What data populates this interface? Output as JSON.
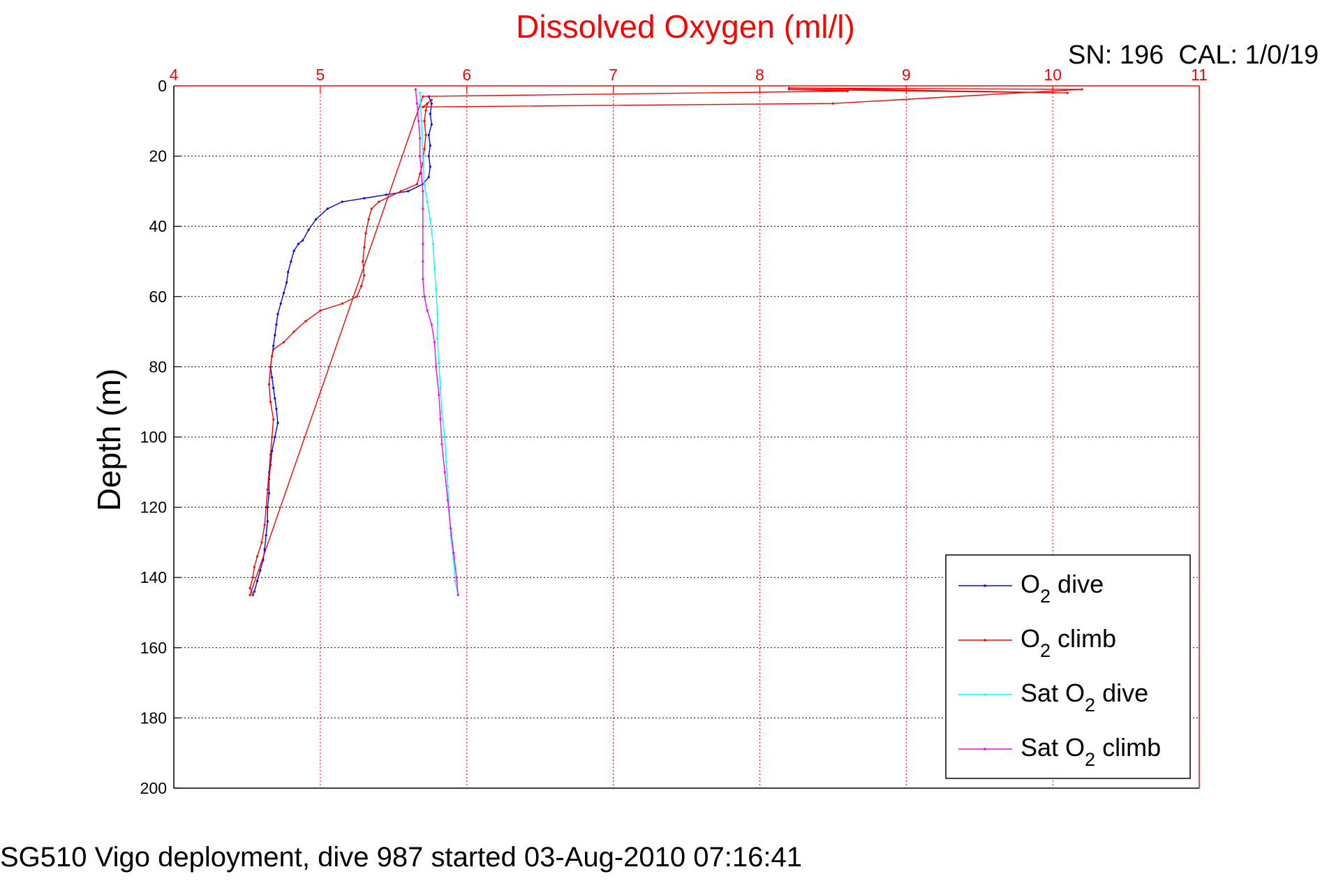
{
  "chart_data": {
    "type": "line",
    "title": "Dissolved Oxygen (ml/l)",
    "ylabel": "Depth (m)",
    "xlabel": "",
    "xlim": [
      4,
      11
    ],
    "ylim": [
      0,
      200
    ],
    "y_reversed": true,
    "x_axis_position": "top",
    "grid": true,
    "legend_position": "bottom-right",
    "xticks": [
      "4",
      "5",
      "6",
      "7",
      "8",
      "9",
      "10",
      "11"
    ],
    "yticks": [
      "0",
      "20",
      "40",
      "60",
      "80",
      "100",
      "120",
      "140",
      "160",
      "180",
      "200"
    ],
    "series": [
      {
        "name": "O₂ dive",
        "legend_main": "O",
        "legend_sub": "2",
        "legend_tail": " dive",
        "color": "#0000ff",
        "points": [
          [
            5.74,
            3
          ],
          [
            5.76,
            5
          ],
          [
            5.75,
            8
          ],
          [
            5.76,
            11
          ],
          [
            5.74,
            14
          ],
          [
            5.75,
            17
          ],
          [
            5.74,
            20
          ],
          [
            5.75,
            23
          ],
          [
            5.74,
            26
          ],
          [
            5.7,
            28
          ],
          [
            5.6,
            30
          ],
          [
            5.45,
            31
          ],
          [
            5.3,
            32
          ],
          [
            5.15,
            33
          ],
          [
            5.05,
            35
          ],
          [
            4.97,
            38
          ],
          [
            4.92,
            41
          ],
          [
            4.88,
            44
          ],
          [
            4.85,
            45
          ],
          [
            4.82,
            47
          ],
          [
            4.8,
            50
          ],
          [
            4.78,
            53
          ],
          [
            4.77,
            56
          ],
          [
            4.75,
            59
          ],
          [
            4.73,
            62
          ],
          [
            4.71,
            65
          ],
          [
            4.7,
            68
          ],
          [
            4.69,
            71
          ],
          [
            4.68,
            74
          ],
          [
            4.67,
            77
          ],
          [
            4.66,
            80
          ],
          [
            4.67,
            83
          ],
          [
            4.68,
            86
          ],
          [
            4.69,
            89
          ],
          [
            4.7,
            92
          ],
          [
            4.71,
            96
          ],
          [
            4.69,
            100
          ],
          [
            4.67,
            104
          ],
          [
            4.66,
            108
          ],
          [
            4.65,
            112
          ],
          [
            4.65,
            116
          ],
          [
            4.64,
            120
          ],
          [
            4.64,
            124
          ],
          [
            4.63,
            128
          ],
          [
            4.62,
            132
          ],
          [
            4.61,
            135
          ],
          [
            4.59,
            138
          ],
          [
            4.57,
            141
          ],
          [
            4.55,
            144
          ],
          [
            4.54,
            145
          ]
        ]
      },
      {
        "name": "O₂ climb",
        "legend_main": "O",
        "legend_sub": "2",
        "legend_tail": " climb",
        "color": "#ff0000",
        "points": [
          [
            4.54,
            145
          ],
          [
            4.52,
            143
          ],
          [
            4.54,
            140
          ],
          [
            4.55,
            137
          ],
          [
            4.57,
            134
          ],
          [
            4.6,
            130
          ],
          [
            4.62,
            125
          ],
          [
            4.63,
            120
          ],
          [
            4.64,
            115
          ],
          [
            4.65,
            110
          ],
          [
            4.66,
            105
          ],
          [
            4.67,
            100
          ],
          [
            4.68,
            95
          ],
          [
            4.66,
            90
          ],
          [
            4.65,
            85
          ],
          [
            4.66,
            80
          ],
          [
            4.67,
            77
          ],
          [
            4.68,
            75
          ],
          [
            4.75,
            73
          ],
          [
            4.82,
            70
          ],
          [
            4.9,
            67
          ],
          [
            5.0,
            64
          ],
          [
            5.15,
            62
          ],
          [
            5.25,
            60
          ],
          [
            5.28,
            57
          ],
          [
            5.3,
            54
          ],
          [
            5.29,
            50
          ],
          [
            5.3,
            46
          ],
          [
            5.31,
            42
          ],
          [
            5.33,
            38
          ],
          [
            5.35,
            35
          ],
          [
            5.4,
            33
          ],
          [
            5.55,
            30
          ],
          [
            5.66,
            28
          ],
          [
            5.68,
            25
          ],
          [
            5.7,
            22
          ],
          [
            5.71,
            18
          ],
          [
            5.72,
            14
          ],
          [
            5.71,
            10
          ],
          [
            5.72,
            7
          ],
          [
            5.73,
            5
          ],
          [
            5.76,
            4
          ],
          [
            5.7,
            6
          ],
          [
            8.5,
            5
          ],
          [
            10.2,
            1
          ],
          [
            8.2,
            0.6
          ],
          [
            10.1,
            2
          ],
          [
            8.2,
            1
          ],
          [
            8.6,
            1.5
          ],
          [
            5.7,
            3
          ],
          [
            4.52,
            145
          ]
        ]
      },
      {
        "name": "Sat O₂ dive",
        "legend_main": "Sat O",
        "legend_sub": "2",
        "legend_tail": " dive",
        "color": "#00ffff",
        "points": [
          [
            5.68,
            2
          ],
          [
            5.69,
            10
          ],
          [
            5.7,
            20
          ],
          [
            5.71,
            28
          ],
          [
            5.73,
            33
          ],
          [
            5.75,
            38
          ],
          [
            5.77,
            45
          ],
          [
            5.78,
            52
          ],
          [
            5.79,
            58
          ],
          [
            5.8,
            65
          ],
          [
            5.8,
            72
          ],
          [
            5.81,
            79
          ],
          [
            5.82,
            86
          ],
          [
            5.83,
            93
          ],
          [
            5.85,
            100
          ],
          [
            5.86,
            107
          ],
          [
            5.87,
            114
          ],
          [
            5.88,
            121
          ],
          [
            5.89,
            128
          ],
          [
            5.91,
            135
          ],
          [
            5.92,
            141
          ],
          [
            5.94,
            145
          ]
        ]
      },
      {
        "name": "Sat O₂ climb",
        "legend_main": "Sat O",
        "legend_sub": "2",
        "legend_tail": " climb",
        "color": "#ff00ff",
        "points": [
          [
            5.94,
            145
          ],
          [
            5.93,
            140
          ],
          [
            5.91,
            133
          ],
          [
            5.89,
            126
          ],
          [
            5.87,
            118
          ],
          [
            5.85,
            110
          ],
          [
            5.83,
            102
          ],
          [
            5.82,
            95
          ],
          [
            5.81,
            88
          ],
          [
            5.79,
            80
          ],
          [
            5.78,
            73
          ],
          [
            5.76,
            68
          ],
          [
            5.73,
            64
          ],
          [
            5.71,
            60
          ],
          [
            5.7,
            55
          ],
          [
            5.7,
            50
          ],
          [
            5.7,
            45
          ],
          [
            5.7,
            40
          ],
          [
            5.7,
            35
          ],
          [
            5.7,
            30
          ],
          [
            5.69,
            25
          ],
          [
            5.68,
            20
          ],
          [
            5.68,
            15
          ],
          [
            5.67,
            10
          ],
          [
            5.66,
            5
          ],
          [
            5.65,
            1
          ]
        ]
      }
    ]
  },
  "annotations": {
    "sn_cal": "SN: 196  CAL: 1/0/19",
    "footer": "SG510 Vigo deployment, dive 987 started 03-Aug-2010 07:16:41"
  }
}
